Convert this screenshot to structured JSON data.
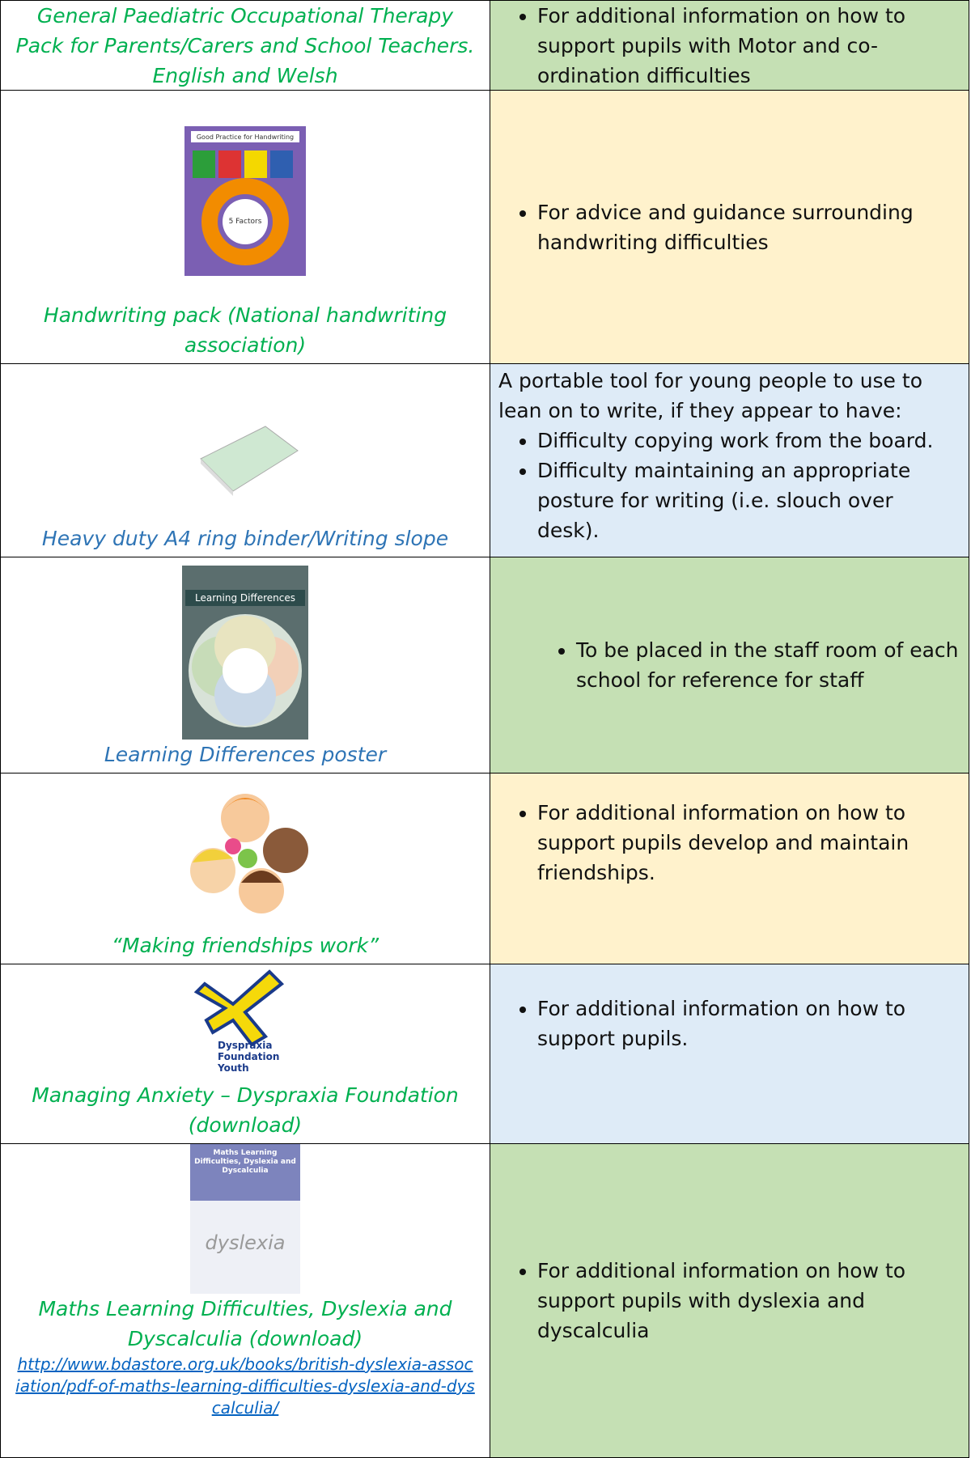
{
  "table": {
    "rows": [
      {
        "title": "General Paediatric Occupational Therapy Pack for Parents/Carers and School Teachers. English and Welsh",
        "bullets": [
          "For additional information on how to support pupils with Motor and co-ordination difficulties"
        ]
      },
      {
        "image_text": [
          "Good Practice for Handwriting",
          "5 Factors"
        ],
        "title": "Handwriting pack (National handwriting association)",
        "bullets": [
          "For advice and guidance surrounding handwriting difficulties"
        ]
      },
      {
        "title": "Heavy duty A4 ring binder/Writing slope",
        "intro": "A portable tool for young people to use to lean on to write, if they appear to have:",
        "bullets": [
          "Difficulty copying work from the board.",
          "Difficulty maintaining an appropriate posture for writing (i.e. slouch over desk)."
        ]
      },
      {
        "image_text": [
          "Learning Differences"
        ],
        "title": "Learning Differences poster",
        "bullets": [
          "To be placed in the staff room of each school for reference for staff"
        ]
      },
      {
        "title": "“Making friendships work”",
        "bullets": [
          "For additional information on how to support pupils develop and maintain friendships."
        ]
      },
      {
        "image_text": [
          "Dyspraxia",
          "Foundation",
          "Youth"
        ],
        "title": "Managing Anxiety – Dyspraxia Foundation (download)",
        "bullets": [
          "For additional information on how to support pupils."
        ]
      },
      {
        "image_text": [
          "Maths Learning Difficulties, Dyslexia and Dyscalculia",
          "dyslexia"
        ],
        "title": "Maths Learning Difficulties, Dyslexia and Dyscalculia (download)",
        "link": "http://www.bdastore.org.uk/books/british-dyslexia-association/pdf-of-maths-learning-difficulties-dyslexia-and-dyscalculia/",
        "bullets": [
          "For additional information on how to support pupils with dyslexia and dyscalculia"
        ]
      }
    ]
  }
}
